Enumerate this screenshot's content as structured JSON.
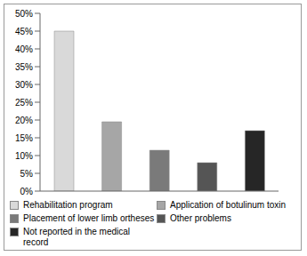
{
  "chart_data": {
    "type": "bar",
    "categories": [
      "Rehabilitation program",
      "Application of botulinum toxin",
      "Placement of lower limb ortheses",
      "Other problems",
      "Not reported in the medical record"
    ],
    "values": [
      45,
      19.5,
      11.5,
      8,
      17
    ],
    "colors": [
      "#d9d9d9",
      "#a6a6a6",
      "#7a7a7a",
      "#555555",
      "#262626"
    ],
    "ylim": [
      0,
      50
    ],
    "yticks": [
      {
        "value": 0,
        "label": "0%"
      },
      {
        "value": 5,
        "label": "5%"
      },
      {
        "value": 10,
        "label": "10%"
      },
      {
        "value": 15,
        "label": "15%"
      },
      {
        "value": 20,
        "label": "20%"
      },
      {
        "value": 25,
        "label": "25%"
      },
      {
        "value": 30,
        "label": "30%"
      },
      {
        "value": 35,
        "label": "35%"
      },
      {
        "value": 40,
        "label": "40%"
      },
      {
        "value": 45,
        "label": "45%"
      },
      {
        "value": 50,
        "label": "50%"
      }
    ],
    "grid": false,
    "tick_labels": "y",
    "legend": "bottom"
  }
}
